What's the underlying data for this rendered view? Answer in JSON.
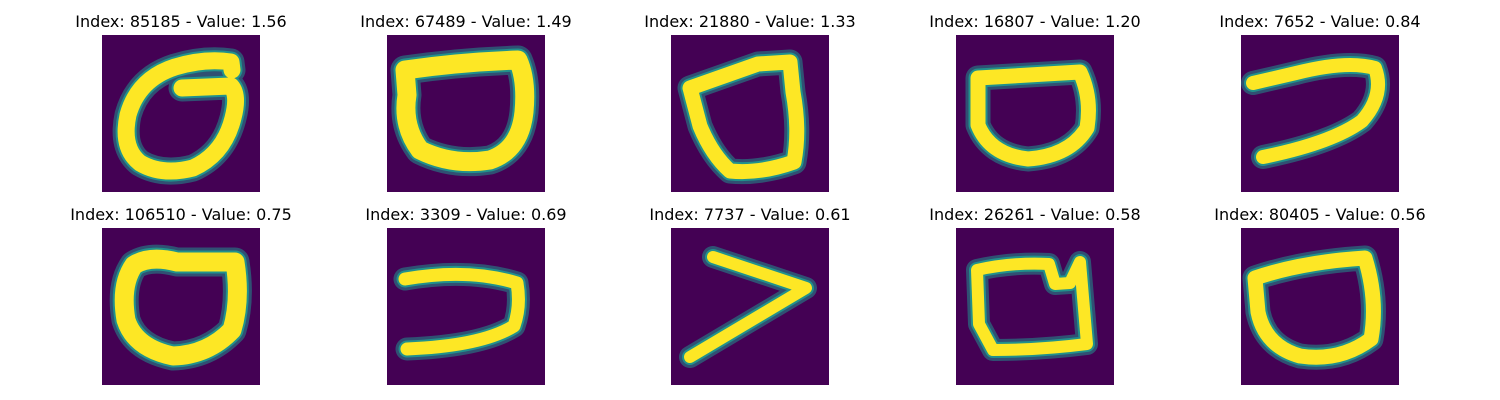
{
  "colors": {
    "background": "#440154",
    "stroke_mid": "#21918c",
    "stroke_core": "#fde725"
  },
  "figure": {
    "panels": [
      {
        "title": "Index: 85185 - Value: 1.56",
        "image": "handwritten-zero-icon"
      },
      {
        "title": "Index: 67489 - Value: 1.49",
        "image": "handwritten-zero-icon"
      },
      {
        "title": "Index: 21880 - Value: 1.33",
        "image": "handwritten-zero-icon"
      },
      {
        "title": "Index: 16807 - Value: 1.20",
        "image": "handwritten-zero-icon"
      },
      {
        "title": "Index: 7652 - Value: 0.84",
        "image": "handwritten-hook-icon"
      },
      {
        "title": "Index: 106510 - Value: 0.75",
        "image": "handwritten-zero-icon"
      },
      {
        "title": "Index: 3309 - Value: 0.69",
        "image": "handwritten-hook-icon"
      },
      {
        "title": "Index: 7737 - Value: 0.61",
        "image": "handwritten-chevron-icon"
      },
      {
        "title": "Index: 26261 - Value: 0.58",
        "image": "handwritten-zero-icon"
      },
      {
        "title": "Index: 80405 - Value: 0.56",
        "image": "handwritten-zero-icon"
      }
    ]
  }
}
